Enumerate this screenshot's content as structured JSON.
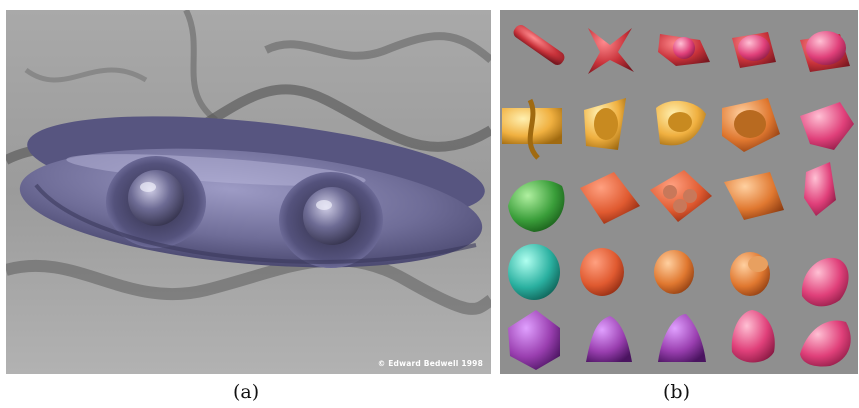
{
  "figure": {
    "panel_a": {
      "label": "(a)",
      "credit": "© Edward Bedwell 1998",
      "subject": "purple-blended-ring-surface",
      "colors": {
        "surface": "#6f6d98",
        "background": "#8e8e8e"
      }
    },
    "panel_b": {
      "label": "(b)",
      "subject": "grid-of-metamorph-shapes",
      "rows": 5,
      "cols": 5,
      "row_colors": [
        "#c8323a",
        "#f0b040",
        "#e05a30",
        "#e07830",
        "#9a3fb0"
      ],
      "accent_colors": {
        "green": "#3a9e3a",
        "teal": "#2ab0a0",
        "pink": "#e0407a"
      },
      "background": "#8f8f8f"
    }
  }
}
